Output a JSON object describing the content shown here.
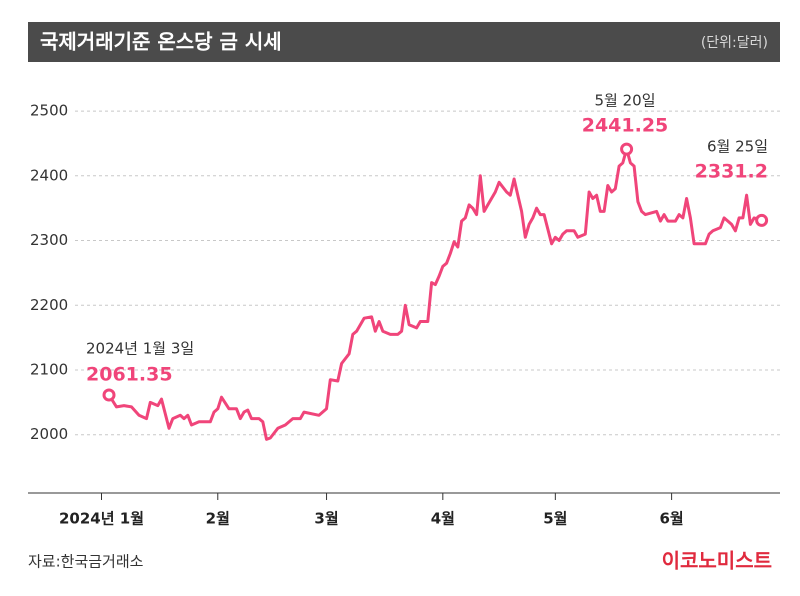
{
  "chart_data": {
    "type": "line",
    "title": "국제거래기준 온스당 금 시세",
    "unit": "(단위:달러)",
    "source": "자료:한국금거래소",
    "brand": "이코노미스트",
    "x": [
      3,
      5,
      7,
      9,
      11,
      13,
      14,
      16,
      17,
      19,
      20,
      22,
      23,
      24,
      25,
      27,
      30,
      31,
      32,
      33,
      35,
      37,
      38,
      39,
      40,
      41,
      43,
      44,
      45,
      46,
      48,
      50,
      52,
      54,
      55,
      59,
      61,
      62,
      64,
      65,
      67,
      68,
      69,
      71,
      73,
      74,
      75,
      76,
      78,
      80,
      81,
      82,
      83,
      85,
      86,
      88,
      89,
      90,
      91,
      92,
      93,
      94,
      95,
      96,
      97,
      98,
      99,
      100,
      101,
      102,
      103,
      104,
      106,
      107,
      109,
      110,
      111,
      112,
      113,
      114,
      115,
      116,
      117,
      118,
      119,
      121,
      122,
      123,
      124,
      125,
      126,
      127,
      128,
      130,
      131,
      132,
      133,
      134,
      135,
      136,
      137,
      138,
      139,
      140,
      141,
      142,
      143,
      144,
      145,
      146,
      149,
      150,
      151,
      152,
      154,
      155,
      156,
      157,
      158,
      159,
      162,
      163,
      164,
      166,
      167,
      168,
      169,
      170,
      171,
      172,
      173,
      174,
      175,
      177
    ],
    "series": [
      {
        "color": "#f0457a",
        "values": [
          2061.35,
          2043,
          2045,
          2043,
          2030,
          2025,
          2050,
          2045,
          2055,
          2010,
          2025,
          2030,
          2025,
          2030,
          2015,
          2020,
          2020,
          2035,
          2040,
          2058,
          2040,
          2040,
          2025,
          2035,
          2038,
          2025,
          2025,
          2020,
          1993,
          1995,
          2010,
          2015,
          2025,
          2025,
          2035,
          2030,
          2040,
          2085,
          2083,
          2110,
          2125,
          2155,
          2160,
          2180,
          2182,
          2160,
          2175,
          2160,
          2155,
          2155,
          2160,
          2200,
          2170,
          2165,
          2175,
          2175,
          2235,
          2232,
          2245,
          2260,
          2265,
          2280,
          2298,
          2290,
          2330,
          2335,
          2355,
          2350,
          2340,
          2400,
          2345,
          2355,
          2375,
          2390,
          2375,
          2370,
          2395,
          2370,
          2345,
          2305,
          2325,
          2335,
          2350,
          2340,
          2340,
          2295,
          2305,
          2300,
          2310,
          2315,
          2315,
          2315,
          2305,
          2310,
          2375,
          2365,
          2370,
          2345,
          2345,
          2385,
          2375,
          2380,
          2415,
          2420,
          2441.25,
          2420,
          2415,
          2360,
          2345,
          2340,
          2345,
          2330,
          2340,
          2330,
          2330,
          2340,
          2335,
          2365,
          2335,
          2295,
          2295,
          2310,
          2315,
          2320,
          2335,
          2330,
          2325,
          2315,
          2335,
          2335,
          2370,
          2325,
          2335,
          2331.2
        ]
      }
    ],
    "annotations": [
      {
        "text": "2024년 1월 3일",
        "x": 3,
        "value": 2061.35
      },
      {
        "text": "5월 20일",
        "x": 141,
        "value": 2441.25
      },
      {
        "text": "6월 25일",
        "x": 177,
        "value": 2331.2
      }
    ],
    "xlim": [
      -18.6,
      181.9
    ],
    "xticks": [
      {
        "value": 1,
        "label": "2024년 1월"
      },
      {
        "value": 32,
        "label": "2월"
      },
      {
        "value": 61,
        "label": "3월"
      },
      {
        "value": 92,
        "label": "4월"
      },
      {
        "value": 122,
        "label": "5월"
      },
      {
        "value": 153,
        "label": "6월"
      }
    ],
    "ylim": [
      1910,
      2548
    ],
    "yticks": [
      2000,
      2100,
      2200,
      2300,
      2400,
      2500
    ],
    "grid": true
  }
}
